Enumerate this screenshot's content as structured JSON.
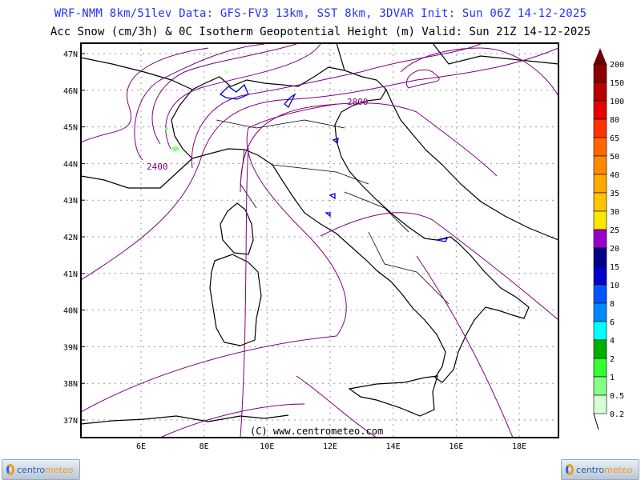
{
  "header": {
    "line1": "WRF-NMM 8km/51lev  Data: GFS-FV3 13km, SST 8km, 3DVAR  Init: Sun 06Z 14-12-2025",
    "line2": "Acc Snow (cm/3h) & 0C Isotherm Geopotential Height (m)  Valid: Sun 21Z 14-12-2025",
    "line1_color": "#2233ff"
  },
  "map": {
    "lat_labels": [
      "47N",
      "46N",
      "45N",
      "44N",
      "43N",
      "42N",
      "41N",
      "40N",
      "39N",
      "38N",
      "37N"
    ],
    "lon_labels": [
      "6E",
      "8E",
      "10E",
      "12E",
      "14E",
      "16E",
      "18E"
    ],
    "contour_labels": [
      "2400",
      "2800"
    ],
    "contour_color": "#800080",
    "copyright": "(C) www.centrometeo.com"
  },
  "colorbar": {
    "labels": [
      "200",
      "150",
      "100",
      "80",
      "65",
      "50",
      "40",
      "35",
      "30",
      "25",
      "20",
      "15",
      "10",
      "8",
      "6",
      "4",
      "2",
      "1",
      "0.5",
      "0.2"
    ],
    "colors": [
      "#8b0000",
      "#b80000",
      "#e60000",
      "#ff3300",
      "#ff6600",
      "#ff8800",
      "#ffaa00",
      "#ffc400",
      "#ffe600",
      "#9900cc",
      "#000088",
      "#0000cc",
      "#0055ff",
      "#0088ff",
      "#00ffff",
      "#00b000",
      "#33ff33",
      "#88ff88",
      "#d4ffd4"
    ],
    "top_arrow_color": "#6b0000"
  },
  "logos": {
    "brand_part1": "centro",
    "brand_part2": "meteo"
  }
}
